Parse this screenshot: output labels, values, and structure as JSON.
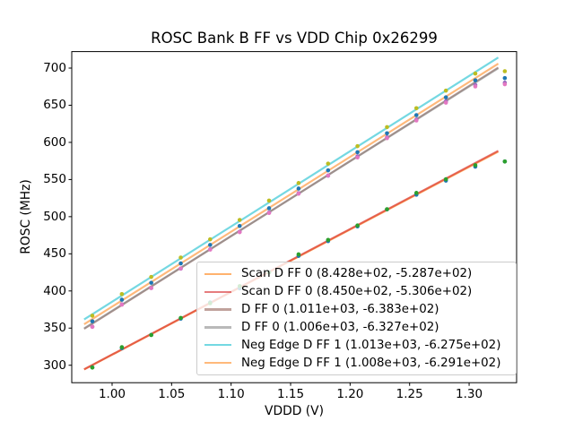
{
  "chart_data": {
    "type": "scatter",
    "title": "ROSC Bank B FF vs VDD Chip 0x26299",
    "xlabel": "VDDD (V)",
    "ylabel": "ROSC (MHz)",
    "xlim": [
      0.9661,
      1.3399
    ],
    "ylim": [
      276.5,
      722.2
    ],
    "xticks": [
      "1.00",
      "1.05",
      "1.10",
      "1.15",
      "1.20",
      "1.25",
      "1.30"
    ],
    "xtick_values": [
      1.0,
      1.05,
      1.1,
      1.15,
      1.2,
      1.25,
      1.3
    ],
    "yticks": [
      "300",
      "350",
      "400",
      "450",
      "500",
      "550",
      "600",
      "650",
      "700"
    ],
    "ytick_values": [
      300,
      350,
      400,
      450,
      500,
      550,
      600,
      650,
      700
    ],
    "grid": false,
    "legend_position": "lower-right",
    "x": [
      0.9834,
      1.0082,
      1.0329,
      1.0577,
      1.0824,
      1.1072,
      1.1319,
      1.1567,
      1.1815,
      1.2062,
      1.231,
      1.2557,
      1.2805,
      1.3052,
      1.33
    ],
    "fit_line_span": [
      0.9765,
      1.3245
    ],
    "series": [
      {
        "label": "Scan D FF 0 (8.428e+02, -5.287e+02)",
        "fit_slope": 842.8,
        "fit_intercept": -528.7,
        "dot_color": "#1f77b4",
        "line_color": "#ff7f0e",
        "line_alpha": 0.6,
        "residuals": [
          -3,
          2,
          -1,
          0,
          1,
          -1,
          0,
          1,
          0,
          -1,
          1,
          0,
          -2,
          -4,
          -18
        ]
      },
      {
        "label": "Scan D FF 0 (8.450e+02, -5.306e+02)",
        "fit_slope": 845.0,
        "fit_intercept": -530.6,
        "dot_color": "#2ca02c",
        "line_color": "#d62728",
        "line_alpha": 0.6,
        "residuals": [
          -3.5,
          3,
          -1.5,
          0.5,
          -0.5,
          1.5,
          -1,
          2.5,
          1,
          -0.5,
          0.5,
          1.5,
          -1,
          -3,
          -19
        ]
      },
      {
        "label": "D FF 0 (1.011e+03, -6.383e+02)",
        "fit_slope": 1011.0,
        "fit_intercept": -638.3,
        "dot_color": "#9467bd",
        "line_color": "#8c564b",
        "line_alpha": 0.55,
        "residuals": [
          -4,
          1,
          -2,
          -1,
          0,
          -1.5,
          -0.5,
          0.5,
          -1,
          0,
          0.5,
          -0.5,
          -1,
          -4,
          -26
        ]
      },
      {
        "label": "D FF 0 (1.006e+03, -6.327e+02)",
        "fit_slope": 1006.0,
        "fit_intercept": -632.7,
        "dot_color": "#e377c2",
        "line_color": "#7f7f7f",
        "line_alpha": 0.55,
        "residuals": [
          -5,
          0,
          -2.5,
          -1,
          -0.5,
          -2,
          -1,
          0,
          -0.5,
          -1,
          0,
          -1,
          -2,
          -5,
          -27
        ]
      },
      {
        "label": "Neg Edge D FF 1 (1.013e+03, -6.275e+02)",
        "fit_slope": 1013.0,
        "fit_intercept": -627.5,
        "dot_color": "#bcbd22",
        "line_color": "#17becf",
        "line_alpha": 0.6,
        "residuals": [
          -2,
          2,
          0,
          1,
          0.5,
          1.5,
          2.5,
          1,
          2,
          0.5,
          1,
          1.5,
          0,
          -2,
          -24
        ]
      },
      {
        "label": "Neg Edge D FF 1 (1.008e+03, -6.291e+02)",
        "fit_slope": 1008.0,
        "fit_intercept": -629.1,
        "dot_color": "#1f77b4",
        "line_color": "#ff7f0e",
        "line_alpha": 0.55,
        "residuals": [
          -3,
          1,
          -1,
          0,
          0,
          0.5,
          -0.5,
          1,
          0.5,
          0,
          0.5,
          0,
          -1,
          -3,
          -25
        ]
      }
    ]
  }
}
